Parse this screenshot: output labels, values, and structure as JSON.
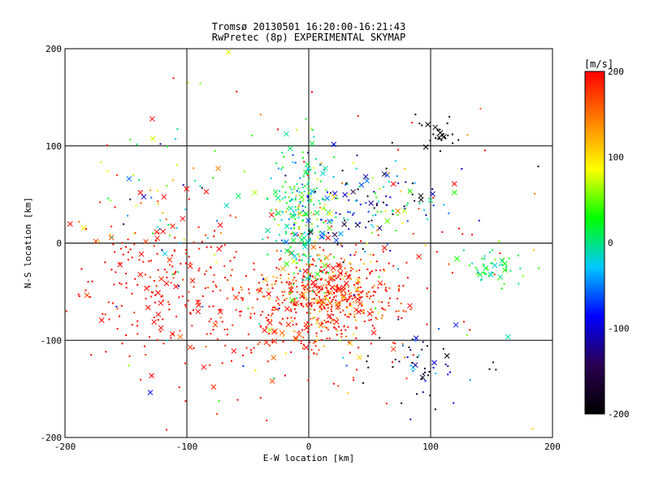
{
  "chart_data": {
    "type": "scatter",
    "title": "Tromsø 20130501 16:20:00-16:21:43",
    "subtitle": "RwPretec (8p) EXPERIMENTAL SKYMAP",
    "xlabel": "E-W location [km]",
    "ylabel": "N-S location [km]",
    "xlim": [
      -200,
      200
    ],
    "ylim": [
      -200,
      200
    ],
    "xticks": [
      "-200",
      "-100",
      "0",
      "100",
      "200"
    ],
    "yticks": [
      "-200",
      "-100",
      "0",
      "100",
      "200"
    ],
    "grid": true,
    "marker_types": [
      "dot",
      "x"
    ],
    "colorbar": {
      "label": "[m/s]",
      "min": -200,
      "max": 200,
      "ticks": [
        "200",
        "100",
        "0",
        "-100",
        "-200"
      ],
      "colors": [
        "#000000",
        "#2a0050",
        "#0000ff",
        "#00c8ff",
        "#00ff00",
        "#ffff00",
        "#ff8000",
        "#ff0000"
      ]
    },
    "clusters": [
      {
        "cx": 15,
        "cy": -55,
        "sx": 30,
        "sy": 22,
        "n": 520,
        "vmean": 180,
        "vsd": 40
      },
      {
        "cx": -5,
        "cy": 25,
        "sx": 12,
        "sy": 35,
        "n": 240,
        "vmean": 10,
        "vsd": 40
      },
      {
        "cx": 40,
        "cy": 40,
        "sx": 35,
        "sy": 25,
        "n": 160,
        "vmean": -60,
        "vsd": 90
      },
      {
        "cx": -120,
        "cy": -35,
        "sx": 40,
        "sy": 40,
        "n": 170,
        "vmean": 200,
        "vsd": 15
      },
      {
        "cx": -30,
        "cy": -80,
        "sx": 60,
        "sy": 40,
        "n": 180,
        "vmean": 195,
        "vsd": 20
      },
      {
        "cx": 150,
        "cy": -25,
        "sx": 12,
        "sy": 10,
        "n": 55,
        "vmean": 15,
        "vsd": 25
      },
      {
        "cx": 95,
        "cy": -125,
        "sx": 25,
        "sy": 18,
        "n": 55,
        "vmean": -160,
        "vsd": 60
      },
      {
        "cx": 108,
        "cy": 112,
        "sx": 8,
        "sy": 10,
        "n": 28,
        "vmean": -200,
        "vsd": 5
      },
      {
        "cx": -140,
        "cy": 50,
        "sx": 25,
        "sy": 40,
        "n": 45,
        "vmean": 30,
        "vsd": 110
      },
      {
        "cx": 0,
        "cy": 0,
        "sx": 110,
        "sy": 95,
        "n": 170,
        "vmean": 140,
        "vsd": 120
      }
    ]
  }
}
